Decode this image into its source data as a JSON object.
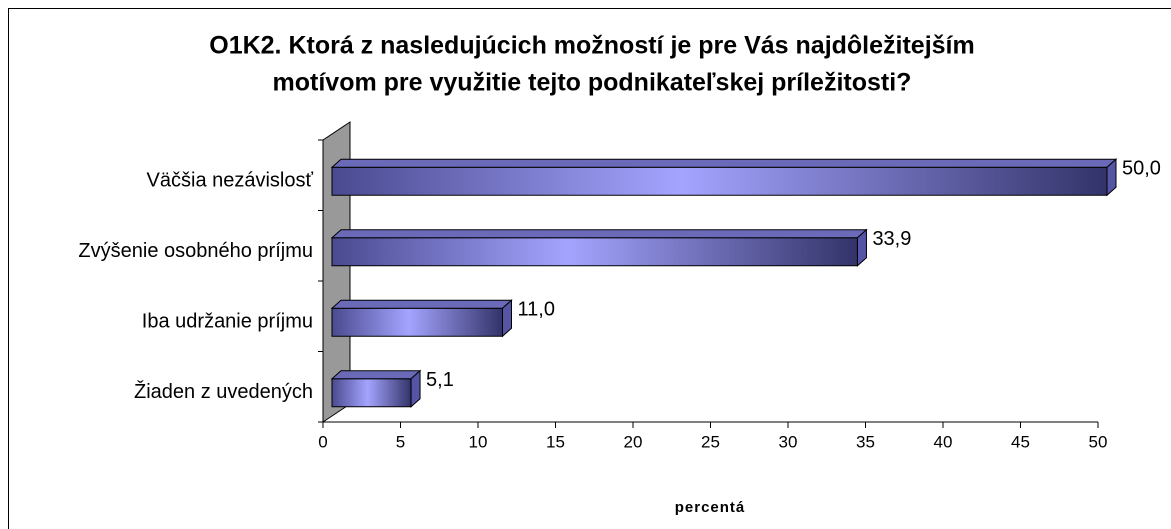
{
  "chart_data": {
    "type": "bar",
    "orientation": "horizontal",
    "title_lines": [
      "O1K2.  Ktorá z nasledujúcich možností je pre Vás najdôležitejším",
      "motívom pre využitie tejto podnikateľskej príležitosti?"
    ],
    "categories": [
      "Väčšia nezávislosť",
      "Zvýšenie osobného príjmu",
      "Iba udržanie príjmu",
      "Žiaden z uvedených"
    ],
    "values": [
      50.0,
      33.9,
      11.0,
      5.1
    ],
    "value_labels": [
      "50,0",
      "33,9",
      "11,0",
      "5,1"
    ],
    "color": "#8888ee",
    "xlim": [
      0,
      50
    ],
    "xticks": [
      0,
      5,
      10,
      15,
      20,
      25,
      30,
      35,
      40,
      45,
      50
    ],
    "xlabel": "percentá"
  }
}
